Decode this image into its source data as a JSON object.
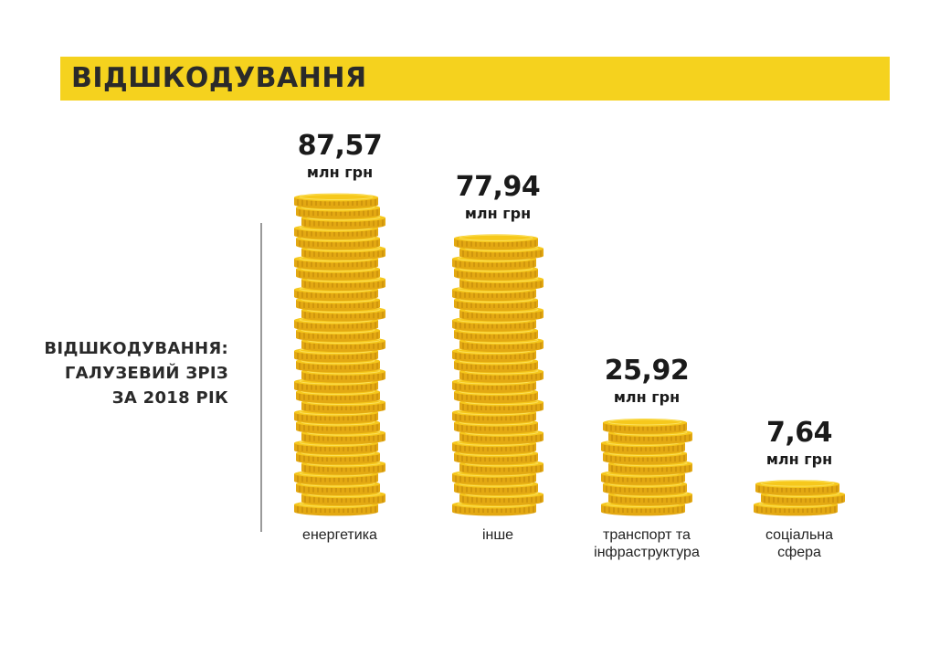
{
  "header": {
    "title": "ВІДШКОДУВАННЯ"
  },
  "side_title": {
    "line1": "ВІДШКОДУВАННЯ:",
    "line2": "ГАЛУЗЕВИЙ ЗРІЗ",
    "line3": "ЗА 2018 РІК"
  },
  "colors": {
    "accent": "#f5d21e",
    "coin_face": "#f6c81c",
    "coin_edge": "#e3a812",
    "coin_rim": "#fbe05a"
  },
  "chart_data": {
    "type": "bar",
    "unit": "млн грн",
    "categories": [
      "енергетика",
      "інше",
      "транспорт та\nінфраструктура",
      "соціальна\nсфера"
    ],
    "values": [
      87.57,
      77.94,
      25.92,
      7.64
    ],
    "value_labels": [
      "87,57",
      "77,94",
      "25,92",
      "7,64"
    ],
    "unit_labels": [
      "млн грн",
      "млн грн",
      "млн грн",
      "млн грн"
    ],
    "title": "",
    "xlabel": "",
    "ylabel": ""
  }
}
